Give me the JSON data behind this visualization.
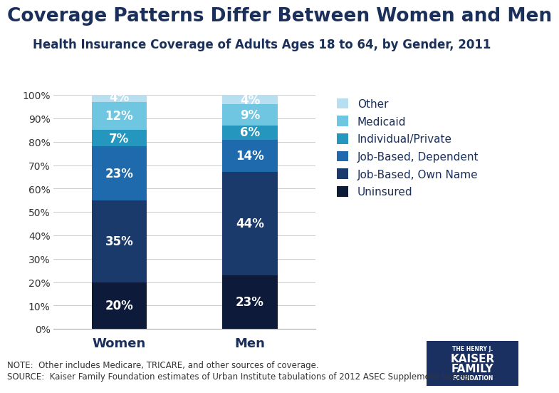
{
  "title": "Coverage Patterns Differ Between Women and Men",
  "subtitle": "Health Insurance Coverage of Adults Ages 18 to 64, by Gender, 2011",
  "categories": [
    "Women",
    "Men"
  ],
  "segments": [
    {
      "label": "Uninsured",
      "values": [
        20,
        23
      ],
      "color": "#0d1a3a"
    },
    {
      "label": "Job-Based, Own Name",
      "values": [
        35,
        44
      ],
      "color": "#1a3a6b"
    },
    {
      "label": "Job-Based, Dependent",
      "values": [
        23,
        14
      ],
      "color": "#1e6aad"
    },
    {
      "label": "Individual/Private",
      "values": [
        7,
        6
      ],
      "color": "#2596be"
    },
    {
      "label": "Medicaid",
      "values": [
        12,
        9
      ],
      "color": "#6ec6e0"
    },
    {
      "label": "Other",
      "values": [
        4,
        4
      ],
      "color": "#b8dff0"
    }
  ],
  "ylim": [
    0,
    100
  ],
  "yticks": [
    0,
    10,
    20,
    30,
    40,
    50,
    60,
    70,
    80,
    90,
    100
  ],
  "ytick_labels": [
    "0%",
    "10%",
    "20%",
    "30%",
    "40%",
    "50%",
    "60%",
    "70%",
    "80%",
    "90%",
    "100%"
  ],
  "note_line1": "NOTE:  Other includes Medicare, TRICARE, and other sources of coverage.",
  "note_line2": "SOURCE:  Kaiser Family Foundation estimates of Urban Institute tabulations of 2012 ASEC Supplement to CPS.",
  "title_fontsize": 19,
  "subtitle_fontsize": 12,
  "label_fontsize": 12,
  "tick_fontsize": 10,
  "legend_fontsize": 11,
  "note_fontsize": 8.5,
  "bar_width": 0.42,
  "background_color": "#ffffff",
  "title_color": "#1a2f5a",
  "subtitle_color": "#1a2f5a",
  "text_color": "#333333",
  "legend_text_color": "#1a2f5a",
  "logo_bg": "#1a3060"
}
